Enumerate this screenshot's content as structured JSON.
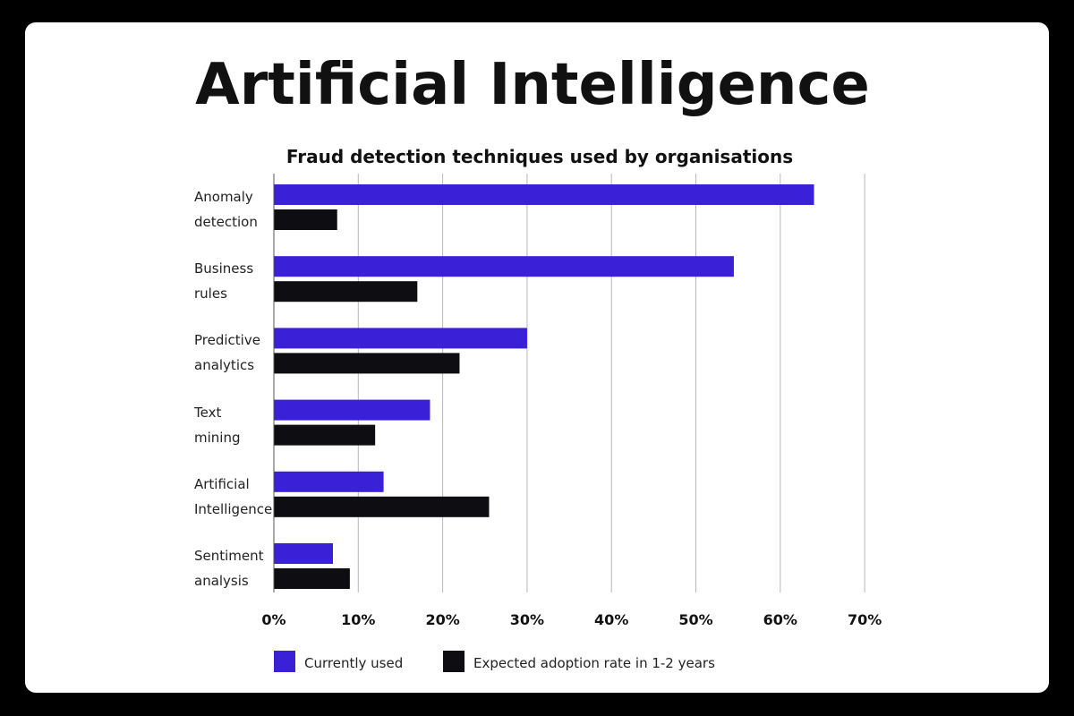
{
  "header": {
    "title": "Artificial Intelligence"
  },
  "colors": {
    "current": "#3a20d6",
    "expected": "#0d0d12",
    "grid": "#b8b8b8"
  },
  "chart_data": {
    "type": "bar",
    "orientation": "horizontal",
    "title": "Fraud detection techniques used by organisations",
    "categories": [
      [
        "Anomaly",
        "detection"
      ],
      [
        "Business",
        "rules"
      ],
      [
        "Predictive",
        "analytics"
      ],
      [
        "Text",
        "mining"
      ],
      [
        "Artificial",
        "Intelligence"
      ],
      [
        "Sentiment",
        "analysis"
      ]
    ],
    "series": [
      {
        "name": "Currently used",
        "values": [
          64,
          54.5,
          30,
          18.5,
          13,
          7
        ]
      },
      {
        "name": "Expected adoption rate in 1-2 years",
        "values": [
          7.5,
          17,
          22,
          12,
          25.5,
          9
        ]
      }
    ],
    "xlim": [
      0,
      70
    ],
    "xticks": [
      "0%",
      "10%",
      "20%",
      "30%",
      "40%",
      "50%",
      "60%",
      "70%"
    ],
    "grid": true,
    "legend_position": "bottom"
  }
}
